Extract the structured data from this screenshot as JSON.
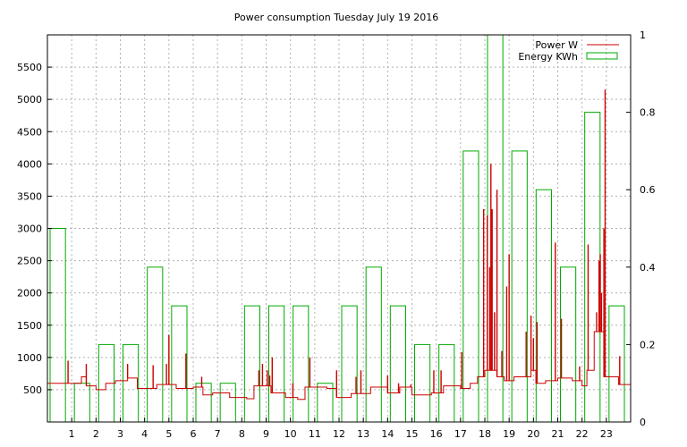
{
  "chart_data": {
    "type": "bar",
    "title": "Power consumption Tuesday July 19 2016",
    "xlabel": "",
    "ylabel": "",
    "y2label": "",
    "x_ticks": [
      "1",
      "2",
      "3",
      "4",
      "5",
      "6",
      "7",
      "8",
      "9",
      "10",
      "11",
      "12",
      "13",
      "14",
      "15",
      "16",
      "17",
      "18",
      "19",
      "20",
      "21",
      "22",
      "23"
    ],
    "xlim": [
      0,
      24
    ],
    "ylim": [
      0,
      6000
    ],
    "y_ticks": [
      500,
      1000,
      1500,
      2000,
      2500,
      3000,
      3500,
      4000,
      4500,
      5000,
      5500
    ],
    "y2lim": [
      0,
      1
    ],
    "y2_ticks": [
      "0",
      "0.2",
      "0.4",
      "0.6",
      "0.8",
      "1"
    ],
    "grid": true,
    "legend_position": "top-right",
    "colors": {
      "power": "#cc0000",
      "energy": "#00aa00"
    },
    "series": [
      {
        "name": "Power W",
        "kind": "line",
        "axis": "y",
        "baseline": [
          [
            0,
            600
          ],
          [
            1.4,
            700
          ],
          [
            1.6,
            560
          ],
          [
            2,
            500
          ],
          [
            2.4,
            600
          ],
          [
            2.8,
            640
          ],
          [
            3.3,
            680
          ],
          [
            3.7,
            520
          ],
          [
            4.5,
            580
          ],
          [
            5.3,
            520
          ],
          [
            6,
            540
          ],
          [
            6.4,
            420
          ],
          [
            6.8,
            450
          ],
          [
            7.5,
            380
          ],
          [
            8.2,
            360
          ],
          [
            8.5,
            560
          ],
          [
            9.2,
            450
          ],
          [
            9.8,
            380
          ],
          [
            10.3,
            350
          ],
          [
            10.6,
            540
          ],
          [
            11.5,
            520
          ],
          [
            11.9,
            380
          ],
          [
            12.5,
            440
          ],
          [
            13.3,
            540
          ],
          [
            14,
            450
          ],
          [
            14.5,
            540
          ],
          [
            15,
            420
          ],
          [
            15.8,
            450
          ],
          [
            16.3,
            560
          ],
          [
            17,
            520
          ],
          [
            17.4,
            600
          ],
          [
            17.7,
            700
          ],
          [
            18,
            800
          ],
          [
            18.5,
            700
          ],
          [
            18.8,
            640
          ],
          [
            19.2,
            700
          ],
          [
            19.9,
            800
          ],
          [
            20.1,
            600
          ],
          [
            20.5,
            640
          ],
          [
            21,
            680
          ],
          [
            21.6,
            640
          ],
          [
            22,
            560
          ],
          [
            22.2,
            800
          ],
          [
            22.5,
            1400
          ],
          [
            22.9,
            700
          ],
          [
            23.5,
            580
          ],
          [
            24,
            580
          ]
        ],
        "spikes": [
          [
            0.85,
            950
          ],
          [
            1.6,
            900
          ],
          [
            3.3,
            900
          ],
          [
            4.35,
            880
          ],
          [
            4.9,
            900
          ],
          [
            5.0,
            1350
          ],
          [
            5.7,
            1060
          ],
          [
            6.35,
            700
          ],
          [
            8.7,
            800
          ],
          [
            8.85,
            900
          ],
          [
            9.05,
            800
          ],
          [
            9.15,
            720
          ],
          [
            9.25,
            1000
          ],
          [
            10.1,
            600
          ],
          [
            10.8,
            1000
          ],
          [
            11.9,
            800
          ],
          [
            12.7,
            700
          ],
          [
            12.9,
            800
          ],
          [
            14.0,
            720
          ],
          [
            14.45,
            600
          ],
          [
            14.95,
            580
          ],
          [
            15.9,
            800
          ],
          [
            16.2,
            800
          ],
          [
            17.05,
            1080
          ],
          [
            17.95,
            3300
          ],
          [
            18.1,
            3200
          ],
          [
            18.2,
            2400
          ],
          [
            18.25,
            4000
          ],
          [
            18.3,
            3300
          ],
          [
            18.4,
            1700
          ],
          [
            18.5,
            3600
          ],
          [
            18.7,
            1100
          ],
          [
            18.9,
            2100
          ],
          [
            19.0,
            2600
          ],
          [
            19.7,
            1400
          ],
          [
            19.9,
            1650
          ],
          [
            20.0,
            1300
          ],
          [
            20.15,
            1550
          ],
          [
            20.9,
            2780
          ],
          [
            21.15,
            1600
          ],
          [
            21.9,
            860
          ],
          [
            22.25,
            2750
          ],
          [
            22.6,
            1700
          ],
          [
            22.7,
            2500
          ],
          [
            22.75,
            2600
          ],
          [
            22.8,
            2000
          ],
          [
            22.9,
            3000
          ],
          [
            22.95,
            5150
          ],
          [
            23.55,
            1020
          ]
        ]
      },
      {
        "name": "Energy KWh",
        "kind": "bar",
        "axis": "y2",
        "categories": [
          0,
          1,
          2,
          3,
          4,
          5,
          6,
          7,
          8,
          9,
          10,
          11,
          12,
          13,
          14,
          15,
          16,
          17,
          18,
          19,
          20,
          21,
          22,
          23
        ],
        "values": [
          0.5,
          0.1,
          0.2,
          0.2,
          0.4,
          0.3,
          0.1,
          0.1,
          0.3,
          0.3,
          0.3,
          0.1,
          0.3,
          0.4,
          0.3,
          0.2,
          0.2,
          0.7,
          1.0,
          0.7,
          0.6,
          0.4,
          0.8,
          0.3
        ]
      }
    ]
  }
}
